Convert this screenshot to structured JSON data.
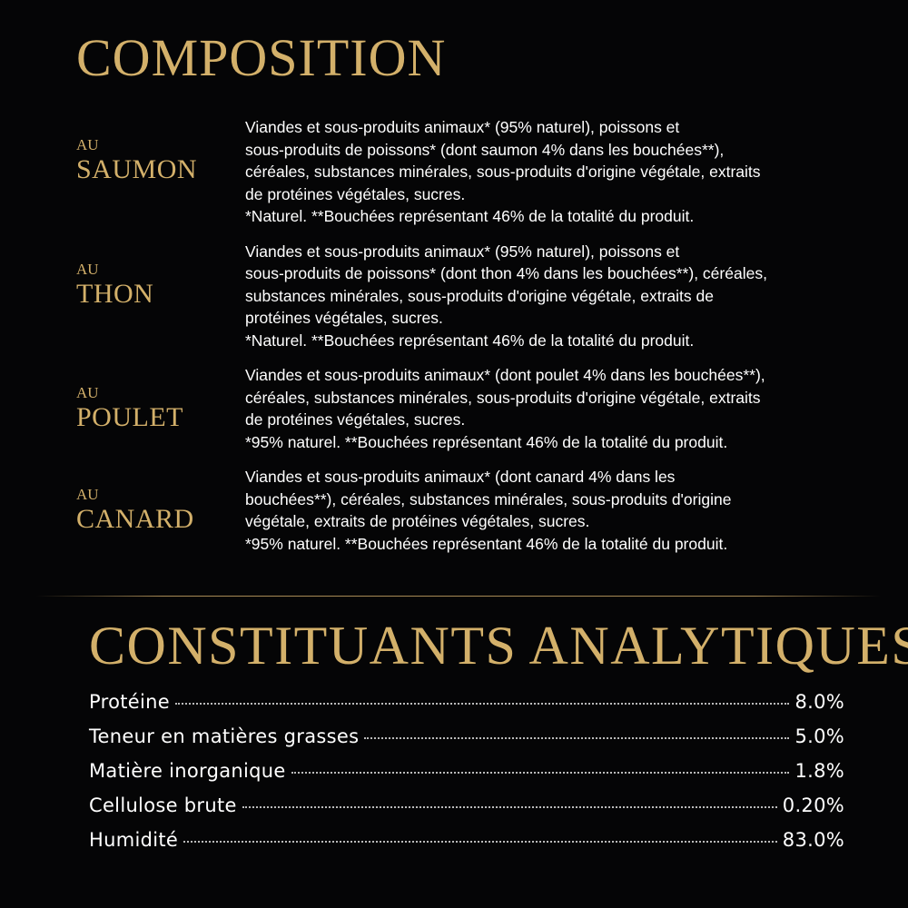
{
  "composition": {
    "title": "COMPOSITION",
    "items": [
      {
        "au": "AU",
        "name": "SAUMON",
        "lines": [
          "Viandes et sous-produits animaux* (95% naturel), poissons et",
          "sous-produits de poissons* (dont saumon 4% dans les bouchées**),",
          "céréales, substances minérales, sous-produits d'origine végétale, extraits",
          "de protéines végétales, sucres.",
          "*Naturel. **Bouchées représentant 46% de la totalité du produit."
        ]
      },
      {
        "au": "AU",
        "name": "THON",
        "lines": [
          "Viandes et sous-produits animaux* (95% naturel), poissons et",
          "sous-produits de poissons* (dont thon 4% dans les bouchées**), céréales,",
          "substances minérales, sous-produits d'origine végétale, extraits de",
          "protéines végétales, sucres.",
          "*Naturel. **Bouchées représentant 46% de la totalité du produit."
        ]
      },
      {
        "au": "AU",
        "name": "POULET",
        "lines": [
          "Viandes et sous-produits animaux* (dont poulet 4% dans les bouchées**),",
          "céréales, substances minérales, sous-produits d'origine végétale, extraits",
          "de protéines végétales, sucres.",
          "*95% naturel. **Bouchées représentant 46% de la totalité du produit."
        ]
      },
      {
        "au": "AU",
        "name": "CANARD",
        "lines": [
          "Viandes et sous-produits animaux* (dont canard 4% dans les",
          "bouchées**), céréales, substances minérales, sous-produits d'origine",
          "végétale, extraits de protéines végétales, sucres.",
          "*95% naturel. **Bouchées représentant 46% de la totalité du produit."
        ]
      }
    ]
  },
  "analytics": {
    "title": "CONSTITUANTS ANALYTIQUES",
    "rows": [
      {
        "label": "Protéine",
        "value": "8.0%"
      },
      {
        "label": "Teneur en matières grasses",
        "value": "5.0%"
      },
      {
        "label": "Matière inorganique",
        "value": "1.8%"
      },
      {
        "label": "Cellulose brute",
        "value": "0.20%"
      },
      {
        "label": "Humidité",
        "value": "83.0%"
      }
    ]
  },
  "colors": {
    "background": "#050506",
    "accent": "#d3b06a",
    "text": "#ffffff"
  }
}
